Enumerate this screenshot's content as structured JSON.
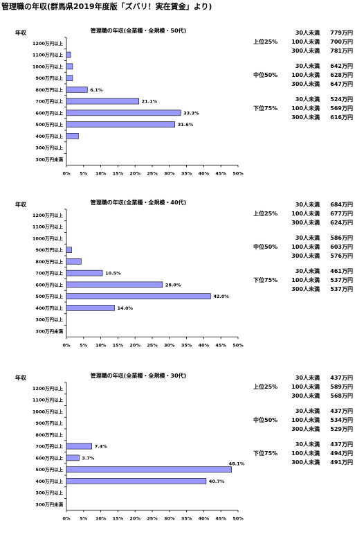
{
  "page_title": "管理職の年収(群馬県2019年度版「ズバリ！実在賃金」より)",
  "chart_data": [
    {
      "type": "bar",
      "orientation": "horizontal",
      "title": "管理職の年収(全業種・全規模・50代)",
      "ylabel": "年収",
      "categories": [
        "1200万円以上",
        "1100万円以上",
        "1000万円以上",
        "900万円以上",
        "800万円以上",
        "700万円以上",
        "600万円以上",
        "500万円以上",
        "400万円以上",
        "300万円以上",
        "300万円未満"
      ],
      "values": [
        0,
        1.2,
        1.8,
        1.8,
        6.1,
        21.1,
        33.3,
        31.6,
        3.5,
        0,
        0
      ],
      "data_labels": [
        "",
        "",
        "",
        "",
        "6.1%",
        "21.1%",
        "33.3%",
        "31.6%",
        "",
        "",
        ""
      ],
      "xlim": [
        0,
        50
      ],
      "xticks": [
        "0%",
        "5%",
        "10%",
        "15%",
        "20%",
        "25%",
        "30%",
        "35%",
        "40%",
        "45%",
        "50%"
      ],
      "color": "#9999ff",
      "percentiles": [
        {
          "label": "上位25%",
          "rows": [
            {
              "size": "30人未満",
              "value": "779万円"
            },
            {
              "size": "100人未満",
              "value": "700万円"
            },
            {
              "size": "300人未満",
              "value": "781万円"
            }
          ]
        },
        {
          "label": "中位50%",
          "rows": [
            {
              "size": "30人未満",
              "value": "642万円"
            },
            {
              "size": "100人未満",
              "value": "628万円"
            },
            {
              "size": "300人未満",
              "value": "647万円"
            }
          ]
        },
        {
          "label": "下位75%",
          "rows": [
            {
              "size": "30人未満",
              "value": "524万円"
            },
            {
              "size": "100人未満",
              "value": "569万円"
            },
            {
              "size": "300人未満",
              "value": "616万円"
            }
          ]
        }
      ]
    },
    {
      "type": "bar",
      "orientation": "horizontal",
      "title": "管理職の年収(全業種・全規模・40代)",
      "ylabel": "年収",
      "categories": [
        "1200万円以上",
        "1100万円以上",
        "1000万円以上",
        "900万円以上",
        "800万円以上",
        "700万円以上",
        "600万円以上",
        "500万円以上",
        "400万円以上",
        "300万円以上",
        "300万円未満"
      ],
      "values": [
        0,
        0,
        0,
        1.5,
        4.3,
        10.5,
        28.0,
        42.0,
        14.0,
        0,
        0
      ],
      "data_labels": [
        "",
        "",
        "",
        "",
        "",
        "10.5%",
        "28.0%",
        "42.0%",
        "14.0%",
        "",
        ""
      ],
      "xlim": [
        0,
        50
      ],
      "xticks": [
        "0%",
        "5%",
        "10%",
        "15%",
        "20%",
        "25%",
        "30%",
        "35%",
        "40%",
        "45%",
        "50%"
      ],
      "color": "#9999ff",
      "percentiles": [
        {
          "label": "上位25%",
          "rows": [
            {
              "size": "30人未満",
              "value": "684万円"
            },
            {
              "size": "100人未満",
              "value": "677万円"
            },
            {
              "size": "300人未満",
              "value": "624万円"
            }
          ]
        },
        {
          "label": "中位50%",
          "rows": [
            {
              "size": "30人未満",
              "value": "586万円"
            },
            {
              "size": "100人未満",
              "value": "603万円"
            },
            {
              "size": "300人未満",
              "value": "576万円"
            }
          ]
        },
        {
          "label": "下位75%",
          "rows": [
            {
              "size": "30人未満",
              "value": "461万円"
            },
            {
              "size": "100人未満",
              "value": "537万円"
            },
            {
              "size": "300人未満",
              "value": "537万円"
            }
          ]
        }
      ]
    },
    {
      "type": "bar",
      "orientation": "horizontal",
      "title": "管理職の年収(全業種・全規模・30代)",
      "ylabel": "年収",
      "categories": [
        "1200万円以上",
        "1100万円以上",
        "1000万円以上",
        "900万円以上",
        "800万円以上",
        "700万円以上",
        "600万円以上",
        "500万円以上",
        "400万円以上",
        "300万円以上",
        "300万円未満"
      ],
      "values": [
        0,
        0,
        0,
        0,
        0,
        7.4,
        3.7,
        48.1,
        40.7,
        0,
        0
      ],
      "data_labels": [
        "",
        "",
        "",
        "",
        "",
        "7.4%",
        "3.7%",
        "48.1%",
        "40.7%",
        "",
        ""
      ],
      "xlim": [
        0,
        50
      ],
      "xticks": [
        "0%",
        "5%",
        "10%",
        "15%",
        "20%",
        "25%",
        "30%",
        "35%",
        "40%",
        "45%",
        "50%"
      ],
      "color": "#9999ff",
      "percentiles": [
        {
          "label": "上位25%",
          "rows": [
            {
              "size": "30人未満",
              "value": "437万円"
            },
            {
              "size": "100人未満",
              "value": "589万円"
            },
            {
              "size": "300人未満",
              "value": "568万円"
            }
          ]
        },
        {
          "label": "中位50%",
          "rows": [
            {
              "size": "30人未満",
              "value": "437万円"
            },
            {
              "size": "100人未満",
              "value": "534万円"
            },
            {
              "size": "300人未満",
              "value": "529万円"
            }
          ]
        },
        {
          "label": "下位75%",
          "rows": [
            {
              "size": "30人未満",
              "value": "437万円"
            },
            {
              "size": "100人未満",
              "value": "494万円"
            },
            {
              "size": "300人未満",
              "value": "491万円"
            }
          ]
        }
      ]
    }
  ]
}
